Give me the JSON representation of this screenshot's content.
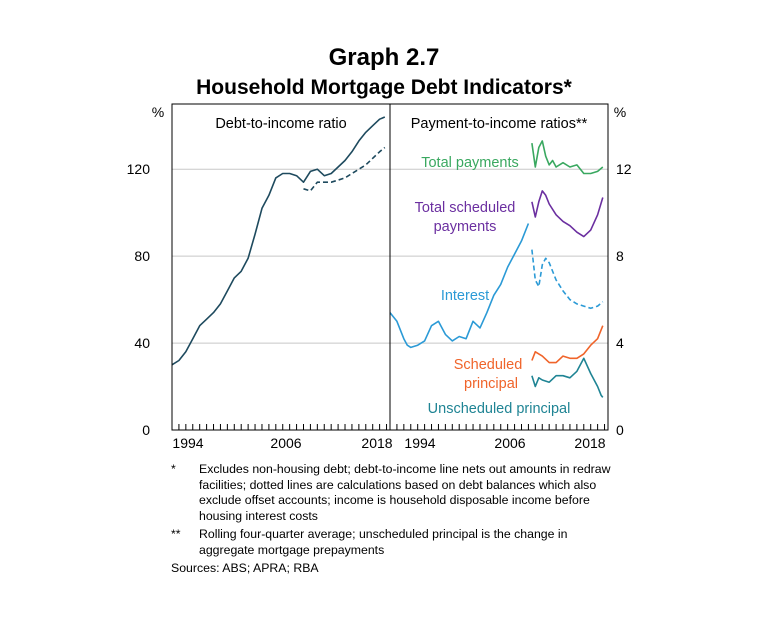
{
  "graph_number": "Graph 2.7",
  "graph_title": "Household Mortgage Debt Indicators*",
  "footnotes": [
    {
      "marker": "*",
      "text": "Excludes non-housing debt; debt-to-income line nets out amounts in redraw facilities; dotted lines are calculations based on debt balances which also exclude offset accounts; income is household disposable income before housing interest costs"
    },
    {
      "marker": "**",
      "text": "Rolling four-quarter average; unscheduled principal is the change in aggregate mortgage prepayments"
    }
  ],
  "sources": "Sources: ABS; APRA; RBA",
  "colors": {
    "debt": "#1e4a5e",
    "total_payments": "#3aa860",
    "scheduled_payments": "#6b2fa0",
    "interest": "#2b9ad6",
    "scheduled_principal": "#f0642a",
    "unscheduled_principal": "#1f8494",
    "grid": "#c8c8c8"
  },
  "chart_data": [
    {
      "type": "line",
      "title": "Debt-to-income ratio",
      "ylabel": "%",
      "ylim": [
        0,
        150
      ],
      "yticks": [
        0,
        40,
        80,
        120
      ],
      "xlim": [
        1988,
        2019.5
      ],
      "xtick_labels": [
        "1994",
        "2006",
        "2018"
      ],
      "grid": true,
      "series": [
        {
          "style": "solid",
          "color": "debt",
          "x": [
            1988,
            1989,
            1990,
            1991,
            1992,
            1993,
            1994,
            1995,
            1996,
            1997,
            1998,
            1999,
            2000,
            2001,
            2002,
            2003,
            2004,
            2005,
            2006,
            2007,
            2008,
            2009,
            2010,
            2011,
            2012,
            2013,
            2014,
            2015,
            2016,
            2017,
            2018,
            2018.75
          ],
          "y": [
            30,
            32,
            36,
            42,
            48,
            51,
            54,
            58,
            64,
            70,
            73,
            79,
            90,
            102,
            108,
            116,
            118,
            118,
            117,
            114,
            119,
            120,
            117,
            118,
            121,
            124,
            128,
            133,
            137,
            140,
            143,
            144
          ]
        },
        {
          "style": "dashed",
          "color": "debt",
          "x": [
            2007,
            2008,
            2009,
            2010,
            2011,
            2012,
            2013,
            2014,
            2015,
            2016,
            2017,
            2018,
            2018.75
          ],
          "y": [
            111,
            110,
            114,
            114,
            114,
            115,
            116,
            118,
            120,
            122,
            125,
            128,
            130
          ]
        }
      ]
    },
    {
      "type": "line",
      "title": "Payment-to-income ratios**",
      "ylabel": "%",
      "ylim": [
        0,
        15
      ],
      "yticks": [
        0,
        4,
        8,
        12
      ],
      "xlim": [
        1988,
        2019.5
      ],
      "xtick_labels": [
        "1994",
        "2006",
        "2018"
      ],
      "grid": true,
      "series": [
        {
          "name": "Total payments",
          "style": "solid",
          "color": "total_payments",
          "x": [
            2008.5,
            2009,
            2009.5,
            2010,
            2010.5,
            2011,
            2011.5,
            2012,
            2013,
            2014,
            2015,
            2016,
            2017,
            2018,
            2018.75
          ],
          "y": [
            13.2,
            12.1,
            13.0,
            13.3,
            12.6,
            12.2,
            12.4,
            12.1,
            12.3,
            12.1,
            12.2,
            11.8,
            11.8,
            11.9,
            12.1
          ]
        },
        {
          "name": "Total scheduled payments",
          "style": "solid",
          "color": "scheduled_payments",
          "x": [
            2008.5,
            2009,
            2009.5,
            2010,
            2010.5,
            2011,
            2012,
            2013,
            2014,
            2015,
            2016,
            2017,
            2018,
            2018.75
          ],
          "y": [
            10.5,
            9.8,
            10.5,
            11.0,
            10.8,
            10.4,
            9.9,
            9.6,
            9.4,
            9.1,
            8.9,
            9.2,
            9.9,
            10.7
          ]
        },
        {
          "name": "Interest",
          "style": "solid",
          "color": "interest",
          "x": [
            1988,
            1988.5,
            1989,
            1990,
            1990.5,
            1991,
            1992,
            1993,
            1994,
            1995,
            1996,
            1997,
            1998,
            1999,
            2000,
            2001,
            2002,
            2003,
            2004,
            2005,
            2006,
            2007,
            2008
          ],
          "y": [
            5.4,
            5.2,
            5.0,
            4.2,
            3.9,
            3.8,
            3.9,
            4.1,
            4.8,
            5.0,
            4.4,
            4.1,
            4.3,
            4.2,
            5.0,
            4.7,
            5.4,
            6.2,
            6.7,
            7.5,
            8.1,
            8.7,
            9.5
          ]
        },
        {
          "name": "Interest",
          "style": "dashed",
          "color": "interest",
          "x": [
            2008.5,
            2009,
            2009.5,
            2010,
            2010.5,
            2011,
            2012,
            2013,
            2014,
            2015,
            2016,
            2017,
            2018,
            2018.75
          ],
          "y": [
            8.3,
            6.9,
            6.6,
            7.6,
            7.9,
            7.7,
            6.9,
            6.4,
            6.0,
            5.8,
            5.7,
            5.6,
            5.7,
            5.9
          ]
        },
        {
          "name": "Scheduled principal",
          "style": "solid",
          "color": "scheduled_principal",
          "x": [
            2008.5,
            2009,
            2010,
            2011,
            2012,
            2013,
            2014,
            2015,
            2016,
            2017,
            2018,
            2018.75
          ],
          "y": [
            3.2,
            3.6,
            3.4,
            3.1,
            3.1,
            3.4,
            3.3,
            3.3,
            3.5,
            3.9,
            4.2,
            4.8
          ]
        },
        {
          "name": "Unscheduled principal",
          "style": "solid",
          "color": "unscheduled_principal",
          "x": [
            2008.5,
            2009,
            2009.5,
            2010,
            2011,
            2012,
            2013,
            2014,
            2015,
            2016,
            2017,
            2018,
            2018.5,
            2018.75
          ],
          "y": [
            2.5,
            2.0,
            2.4,
            2.3,
            2.2,
            2.5,
            2.5,
            2.4,
            2.7,
            3.3,
            2.6,
            2.0,
            1.6,
            1.5
          ]
        }
      ],
      "annotations": [
        {
          "text": "Total payments",
          "color": "total_payments"
        },
        {
          "text": "Total scheduled payments",
          "color": "scheduled_payments"
        },
        {
          "text": "Interest",
          "color": "interest"
        },
        {
          "text": "Scheduled principal",
          "color": "scheduled_principal"
        },
        {
          "text": "Unscheduled principal",
          "color": "unscheduled_principal"
        }
      ]
    }
  ]
}
